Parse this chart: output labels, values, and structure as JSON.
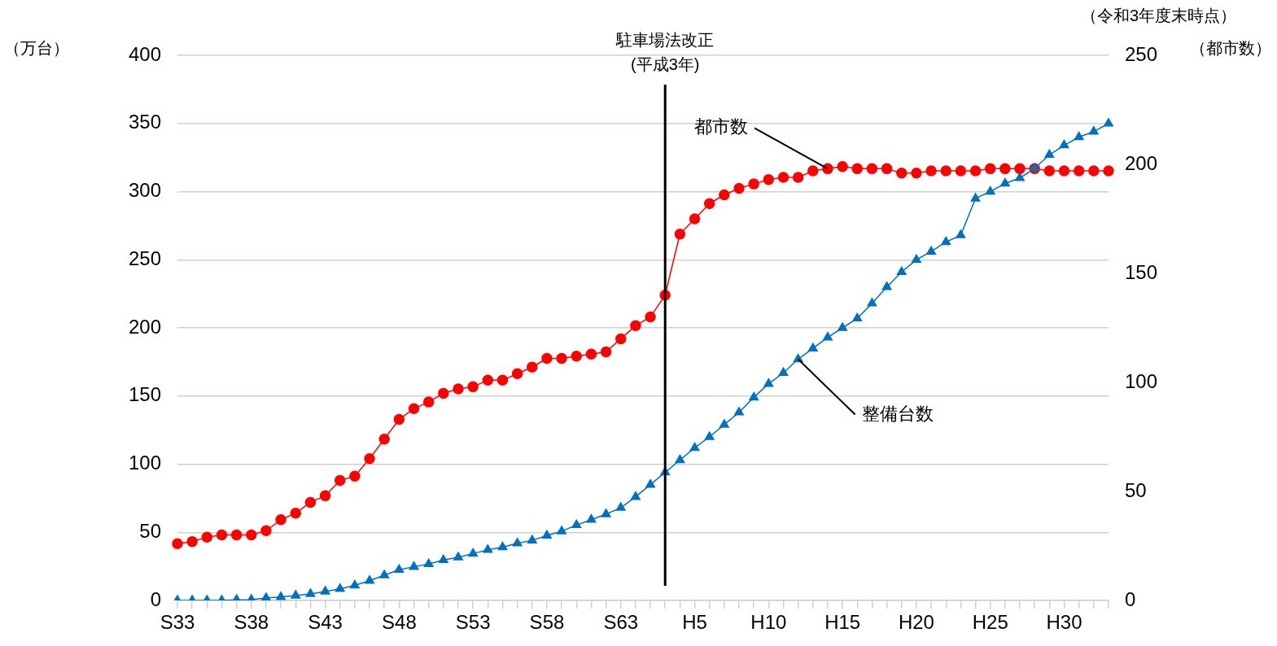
{
  "chart_data": {
    "type": "line",
    "categories": [
      "S33",
      null,
      null,
      null,
      null,
      "S38",
      null,
      null,
      null,
      null,
      "S43",
      null,
      null,
      null,
      null,
      "S48",
      null,
      null,
      null,
      null,
      "S53",
      null,
      null,
      null,
      null,
      "S58",
      null,
      null,
      null,
      null,
      "S63",
      null,
      null,
      null,
      null,
      "H5",
      null,
      null,
      null,
      null,
      "H10",
      null,
      null,
      null,
      null,
      "H15",
      null,
      null,
      null,
      null,
      "H20",
      null,
      null,
      null,
      null,
      "H25",
      null,
      null,
      null,
      null,
      "H30",
      null,
      null,
      null
    ],
    "series": [
      {
        "name": "整備台数",
        "color": "#0070c0",
        "marker": "triangle",
        "values": [
          0,
          0,
          0,
          0,
          0.5,
          0.6,
          1.8,
          2.5,
          3.6,
          4.8,
          6.6,
          8.5,
          11,
          14.5,
          18.5,
          22.5,
          24.7,
          26.7,
          29.7,
          31.6,
          34.4,
          37.1,
          39.1,
          41.9,
          44.1,
          47.6,
          50.8,
          55.3,
          59.3,
          63.3,
          68,
          76,
          85,
          94,
          103,
          112,
          120,
          129,
          138,
          149,
          159,
          167,
          177,
          185,
          193,
          200,
          207,
          218,
          230,
          241,
          250,
          256,
          263,
          268,
          295,
          300,
          306,
          310,
          317,
          327,
          334,
          340,
          344,
          350
        ]
      },
      {
        "name": "都市数",
        "color": "#ff0000",
        "marker": "circle",
        "axis": "y2",
        "values": [
          26,
          27,
          29,
          30,
          30,
          30,
          32,
          37,
          40,
          45,
          48,
          55,
          57,
          65,
          74,
          83,
          88,
          91,
          95,
          97,
          98,
          101,
          101,
          104,
          107,
          111,
          111,
          112,
          113,
          114,
          120,
          126,
          130,
          140,
          168,
          175,
          182,
          186,
          189,
          191,
          193,
          194,
          194,
          197,
          198,
          199,
          198,
          198,
          198,
          196,
          196,
          197,
          197,
          197,
          197,
          198,
          198,
          198,
          198,
          197,
          197,
          197,
          197,
          197
        ]
      }
    ],
    "ylabel": "（万台）",
    "y2label": "（都市数）",
    "ylim": [
      0,
      400
    ],
    "yticks": [
      0,
      50,
      100,
      150,
      200,
      250,
      300,
      350,
      400
    ],
    "y2lim": [
      0,
      250
    ],
    "y2ticks": [
      0,
      50,
      100,
      150,
      200,
      250
    ],
    "annotations": [
      "（令和3年度末時点）",
      "駐車場法改正\n(平成3年)"
    ],
    "grid": "y",
    "legend": false,
    "line_style": "solid"
  }
}
